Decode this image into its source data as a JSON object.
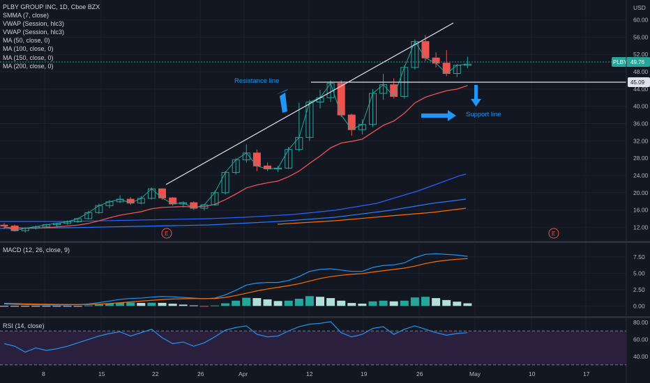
{
  "header": {
    "symbol_line": "PLBY GROUP INC, 1D, Cboe BZX",
    "currency": "USD",
    "indicators": [
      "SMMA (7, close)",
      "VWAP (Session, hlc3)",
      "VWAP (Session, hlc3)",
      "MA (50, close, 0)",
      "MA (100, close, 0)",
      "MA (150, close, 0)",
      "MA (200, close, 0)"
    ]
  },
  "price_axis": {
    "ticks": [
      "60.00",
      "56.00",
      "52.00",
      "48.00",
      "44.00",
      "40.00",
      "36.00",
      "32.00",
      "28.00",
      "24.00",
      "20.00",
      "16.00",
      "12.00"
    ]
  },
  "badges": {
    "symbol": "PLBY",
    "last_price": "49.76",
    "line_price": "45.09"
  },
  "annotations": {
    "resistance": "Resistance line",
    "support": "Support line",
    "earnings_marker": "E"
  },
  "colors": {
    "up": "#26a69a",
    "down": "#ef5350",
    "teal_line": "#26a69a",
    "accent": "#2196f3",
    "rsi_fill": "#2a1f3d"
  },
  "time_axis": {
    "ticks": [
      "8",
      "15",
      "22",
      "26",
      "Apr",
      "12",
      "19",
      "26",
      "May",
      "10",
      "17"
    ]
  },
  "macd": {
    "title": "MACD (12, 26, close, 9)",
    "ticks": [
      "7.50",
      "5.00",
      "2.50",
      "0.00"
    ]
  },
  "rsi": {
    "title": "RSI (14, close)",
    "ticks": [
      "80.00",
      "60.00",
      "40.00"
    ]
  },
  "chart_data": [
    {
      "type": "candlestick",
      "name": "PLBY",
      "ylim": [
        9,
        63
      ],
      "candles": [
        [
          12.5,
          13.0,
          11.6,
          12.3
        ],
        [
          12.3,
          12.6,
          11.0,
          11.2
        ],
        [
          11.2,
          12.0,
          10.8,
          11.8
        ],
        [
          11.8,
          12.4,
          11.5,
          12.1
        ],
        [
          12.1,
          12.8,
          11.8,
          12.6
        ],
        [
          12.6,
          13.1,
          12.2,
          12.9
        ],
        [
          12.9,
          13.6,
          12.6,
          13.3
        ],
        [
          13.3,
          14.2,
          13.0,
          14.0
        ],
        [
          14.0,
          15.8,
          13.8,
          15.4
        ],
        [
          15.4,
          17.5,
          15.1,
          17.0
        ],
        [
          17.0,
          18.3,
          16.4,
          17.9
        ],
        [
          17.9,
          19.4,
          17.6,
          18.5
        ],
        [
          18.5,
          19.0,
          17.2,
          17.6
        ],
        [
          17.6,
          19.2,
          17.3,
          18.7
        ],
        [
          18.7,
          21.2,
          18.4,
          20.9
        ],
        [
          20.9,
          21.0,
          18.4,
          18.8
        ],
        [
          18.8,
          19.0,
          17.0,
          17.4
        ],
        [
          17.4,
          18.0,
          16.6,
          17.7
        ],
        [
          17.7,
          18.0,
          16.0,
          16.4
        ],
        [
          16.4,
          17.4,
          15.9,
          17.2
        ],
        [
          17.2,
          20.5,
          17.0,
          20.0
        ],
        [
          20.0,
          25.0,
          19.6,
          24.7
        ],
        [
          24.7,
          28.0,
          24.2,
          27.6
        ],
        [
          27.6,
          31.2,
          27.0,
          29.2
        ],
        [
          29.2,
          30.0,
          25.0,
          26.2
        ],
        [
          26.2,
          27.0,
          25.0,
          25.5
        ],
        [
          25.5,
          26.2,
          24.8,
          25.7
        ],
        [
          25.7,
          30.6,
          25.5,
          30.0
        ],
        [
          30.0,
          40.8,
          29.6,
          32.8
        ],
        [
          32.8,
          41.5,
          32.0,
          41.0
        ],
        [
          41.0,
          43.8,
          39.5,
          42.0
        ],
        [
          42.0,
          46.0,
          41.0,
          45.3
        ],
        [
          45.3,
          46.0,
          37.5,
          38.0
        ],
        [
          38.0,
          38.3,
          33.2,
          34.6
        ],
        [
          34.6,
          37.0,
          33.5,
          35.8
        ],
        [
          35.8,
          44.0,
          35.2,
          43.0
        ],
        [
          43.0,
          47.5,
          41.5,
          45.0
        ],
        [
          45.0,
          46.5,
          41.8,
          42.3
        ],
        [
          42.3,
          49.5,
          41.8,
          49.0
        ],
        [
          49.0,
          55.5,
          48.5,
          55.0
        ],
        [
          55.0,
          56.5,
          50.5,
          51.2
        ],
        [
          51.2,
          52.5,
          49.0,
          50.0
        ],
        [
          50.0,
          53.0,
          47.0,
          47.6
        ],
        [
          47.6,
          49.8,
          46.8,
          49.5
        ],
        [
          49.5,
          51.5,
          48.8,
          49.76
        ]
      ],
      "overlays": [
        {
          "name": "SMMA (7, close)",
          "color": "#ef5350",
          "values": [
            12.0,
            11.9,
            11.8,
            11.8,
            11.9,
            12.1,
            12.3,
            12.5,
            12.9,
            13.5,
            14.2,
            14.8,
            15.2,
            15.6,
            16.3,
            16.6,
            16.7,
            16.8,
            16.7,
            16.8,
            17.3,
            18.4,
            19.7,
            21.1,
            21.8,
            22.3,
            22.7,
            23.7,
            25.0,
            26.8,
            28.5,
            30.4,
            31.5,
            31.9,
            32.4,
            34.0,
            35.6,
            36.6,
            38.4,
            40.8,
            42.1,
            42.9,
            43.6,
            44.0,
            44.8
          ]
        },
        {
          "name": "MA (50, close, 0)",
          "color": "#2962ff",
          "values": [
            null,
            null,
            null,
            null,
            null,
            null,
            null,
            null,
            null,
            null,
            null,
            null,
            null,
            null,
            null,
            null,
            null,
            null,
            null,
            null,
            null,
            null,
            null,
            null,
            null,
            null,
            null,
            null,
            null,
            null,
            null,
            null,
            null,
            null,
            null,
            null,
            null,
            null,
            null,
            null,
            null,
            null,
            null,
            null,
            null
          ]
        },
        {
          "name": "MA (100, close, 0)",
          "color": "#2979ff"
        },
        {
          "name": "MA (150, close, 0)",
          "color": "#ff6d00"
        },
        {
          "name": "MA (200, close, 0)",
          "color": "#ffffff"
        }
      ]
    },
    {
      "type": "line",
      "name": "MACD (12, 26, close, 9)",
      "ylim": [
        -0.5,
        9
      ],
      "series": [
        {
          "name": "MACD",
          "color": "#2196f3",
          "values": [
            0.3,
            0.25,
            0.2,
            0.18,
            0.15,
            0.15,
            0.17,
            0.2,
            0.3,
            0.5,
            0.75,
            1.0,
            1.15,
            1.2,
            1.35,
            1.45,
            1.4,
            1.3,
            1.2,
            1.1,
            1.2,
            1.7,
            2.4,
            3.2,
            3.5,
            3.6,
            3.6,
            3.9,
            4.5,
            5.3,
            5.6,
            5.7,
            5.5,
            5.3,
            5.3,
            5.9,
            6.2,
            6.3,
            6.6,
            7.4,
            7.9,
            8.0,
            7.9,
            7.8,
            7.6
          ]
        },
        {
          "name": "Signal",
          "color": "#ff6d00",
          "values": [
            0.4,
            0.36,
            0.32,
            0.29,
            0.26,
            0.24,
            0.22,
            0.22,
            0.23,
            0.28,
            0.37,
            0.49,
            0.62,
            0.74,
            0.86,
            0.98,
            1.06,
            1.1,
            1.12,
            1.12,
            1.13,
            1.3,
            1.6,
            1.95,
            2.3,
            2.6,
            2.85,
            3.1,
            3.4,
            3.8,
            4.2,
            4.5,
            4.7,
            4.85,
            4.95,
            5.2,
            5.4,
            5.6,
            5.8,
            6.1,
            6.5,
            6.8,
            7.0,
            7.15,
            7.25
          ]
        },
        {
          "name": "Histogram",
          "values": [
            -0.1,
            -0.1,
            -0.1,
            -0.1,
            -0.1,
            -0.1,
            -0.06,
            -0.02,
            0.07,
            0.22,
            0.38,
            0.51,
            0.53,
            0.46,
            0.49,
            0.47,
            0.34,
            0.2,
            0.08,
            -0.02,
            0.07,
            0.4,
            0.8,
            1.25,
            1.2,
            1.0,
            0.75,
            0.8,
            1.1,
            1.5,
            1.4,
            1.2,
            0.8,
            0.45,
            0.35,
            0.7,
            0.8,
            0.7,
            0.8,
            1.3,
            1.4,
            1.2,
            0.9,
            0.65,
            0.4
          ]
        }
      ]
    },
    {
      "type": "line",
      "name": "RSI (14, close)",
      "ylim": [
        25,
        85
      ],
      "bands": [
        70,
        30
      ],
      "series": [
        {
          "name": "RSI",
          "color": "#2196f3",
          "values": [
            55,
            52,
            45,
            50,
            47,
            49,
            52,
            56,
            60,
            64,
            67,
            69,
            64,
            68,
            72,
            62,
            55,
            57,
            52,
            56,
            63,
            71,
            74,
            76,
            66,
            63,
            64,
            70,
            75,
            78,
            79,
            81,
            68,
            63,
            66,
            73,
            75,
            66,
            72,
            76,
            72,
            68,
            65,
            67,
            68
          ]
        }
      ]
    }
  ]
}
